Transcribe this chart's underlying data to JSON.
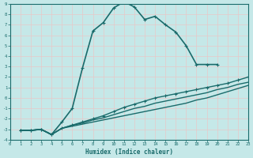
{
  "xlabel": "Humidex (Indice chaleur)",
  "xlim": [
    0,
    23
  ],
  "ylim": [
    -4,
    9
  ],
  "xticks": [
    0,
    1,
    2,
    3,
    4,
    5,
    6,
    7,
    8,
    9,
    10,
    11,
    12,
    13,
    14,
    15,
    16,
    17,
    18,
    19,
    20,
    21,
    22,
    23
  ],
  "yticks": [
    -4,
    -3,
    -2,
    -1,
    0,
    1,
    2,
    3,
    4,
    5,
    6,
    7,
    8,
    9
  ],
  "bg_color": "#c5e8e8",
  "grid_color": "#e8c8c8",
  "line_color": "#1a6b6b",
  "lines": [
    {
      "x": [
        1,
        2,
        3,
        4,
        5,
        6,
        7,
        8,
        9,
        10,
        11,
        12,
        13,
        14,
        15,
        16,
        17,
        18,
        19,
        20
      ],
      "y": [
        -3.1,
        -3.1,
        -3.0,
        -3.5,
        -2.3,
        -1.0,
        2.9,
        6.4,
        7.2,
        8.6,
        9.2,
        8.7,
        7.5,
        7.8,
        7.0,
        6.3,
        5.0,
        3.2,
        3.2,
        3.2
      ],
      "marker": "+",
      "lw": 1.2
    },
    {
      "x": [
        1,
        2,
        3,
        4,
        5,
        6,
        7,
        8,
        9,
        10,
        11,
        12,
        13,
        14,
        15,
        16,
        17,
        18,
        19,
        20,
        21,
        22,
        23
      ],
      "y": [
        -3.1,
        -3.1,
        -3.0,
        -3.5,
        -2.9,
        -2.6,
        -2.3,
        -2.0,
        -1.7,
        -1.3,
        -0.9,
        -0.6,
        -0.3,
        0.0,
        0.2,
        0.4,
        0.6,
        0.8,
        1.0,
        1.2,
        1.4,
        1.7,
        2.0
      ],
      "marker": "+",
      "lw": 1.0
    },
    {
      "x": [
        1,
        2,
        3,
        4,
        5,
        6,
        7,
        8,
        9,
        10,
        11,
        12,
        13,
        14,
        15,
        16,
        17,
        18,
        19,
        20,
        21,
        22,
        23
      ],
      "y": [
        -3.1,
        -3.1,
        -3.0,
        -3.5,
        -2.9,
        -2.6,
        -2.4,
        -2.1,
        -1.9,
        -1.6,
        -1.3,
        -1.0,
        -0.8,
        -0.5,
        -0.3,
        -0.1,
        0.1,
        0.3,
        0.5,
        0.8,
        1.0,
        1.3,
        1.5
      ],
      "marker": null,
      "lw": 1.0
    },
    {
      "x": [
        1,
        2,
        3,
        4,
        5,
        6,
        7,
        8,
        9,
        10,
        11,
        12,
        13,
        14,
        15,
        16,
        17,
        18,
        19,
        20,
        21,
        22,
        23
      ],
      "y": [
        -3.1,
        -3.1,
        -3.0,
        -3.5,
        -2.9,
        -2.7,
        -2.5,
        -2.3,
        -2.1,
        -1.9,
        -1.7,
        -1.5,
        -1.3,
        -1.1,
        -0.9,
        -0.7,
        -0.5,
        -0.2,
        0.0,
        0.3,
        0.6,
        0.9,
        1.2
      ],
      "marker": null,
      "lw": 1.0
    }
  ]
}
